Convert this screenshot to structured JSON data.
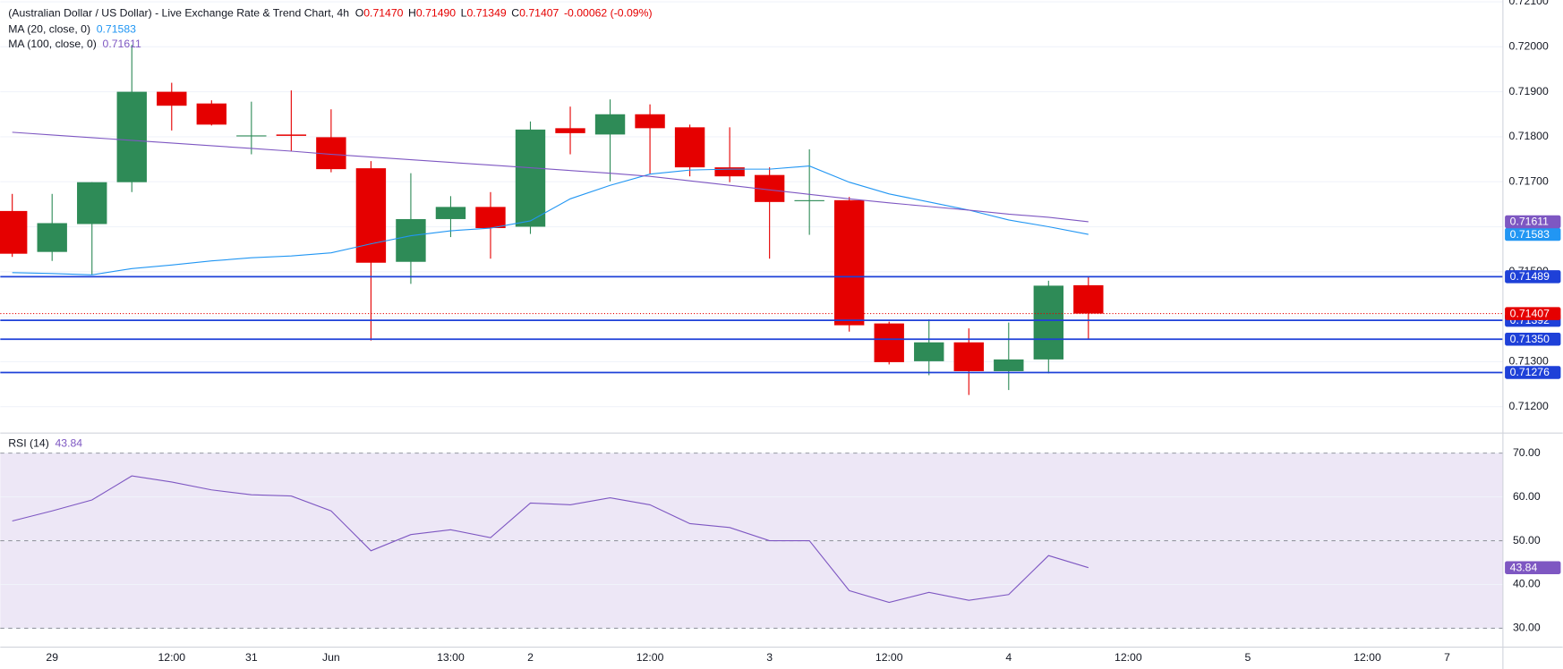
{
  "chart_data": [
    {
      "type": "candlestick",
      "title": "(Australian Dollar / US Dollar) - Live Exchange Rate & Trend Chart, 4h",
      "header_ohlc": [
        {
          "label": "O",
          "value": "0.71470"
        },
        {
          "label": "H",
          "value": "0.71490"
        },
        {
          "label": "L",
          "value": "0.71349"
        },
        {
          "label": "C",
          "value": "0.71407"
        }
      ],
      "header_change": "-0.00062 (-0.09%)",
      "x": [
        0,
        1,
        2,
        3,
        4,
        5,
        6,
        7,
        8,
        9,
        10,
        11,
        12,
        13,
        14,
        15,
        16,
        17,
        18,
        19,
        20,
        21,
        22,
        23,
        24,
        25,
        26,
        27
      ],
      "open": [
        0.71635,
        0.71544,
        0.71606,
        0.71699,
        0.719,
        0.71874,
        0.71803,
        0.71805,
        0.71799,
        0.7173,
        0.71522,
        0.71617,
        0.71644,
        0.716,
        0.71819,
        0.71805,
        0.7185,
        0.71821,
        0.71732,
        0.71715,
        0.71659,
        0.71659,
        0.71385,
        0.71301,
        0.71343,
        0.71279,
        0.71305,
        0.7147
      ],
      "high": [
        0.71673,
        0.71673,
        0.71699,
        0.72004,
        0.7192,
        0.71881,
        0.71878,
        0.71903,
        0.71861,
        0.71746,
        0.71719,
        0.71668,
        0.71677,
        0.71834,
        0.71867,
        0.71883,
        0.71872,
        0.71827,
        0.71821,
        0.71732,
        0.71772,
        0.71666,
        0.71389,
        0.71394,
        0.71374,
        0.71387,
        0.7148,
        0.7149
      ],
      "low": [
        0.71533,
        0.71524,
        0.71493,
        0.71677,
        0.71814,
        0.71825,
        0.71761,
        0.71768,
        0.71721,
        0.71347,
        0.71473,
        0.71577,
        0.71529,
        0.71584,
        0.71761,
        0.71701,
        0.71717,
        0.71712,
        0.71699,
        0.71529,
        0.71582,
        0.71367,
        0.71294,
        0.7127,
        0.71226,
        0.71237,
        0.71274,
        0.71349
      ],
      "close": [
        0.7154,
        0.71608,
        0.71699,
        0.719,
        0.71869,
        0.71827,
        0.71803,
        0.71802,
        0.71728,
        0.7152,
        0.71617,
        0.71644,
        0.71597,
        0.71816,
        0.71808,
        0.7185,
        0.71819,
        0.71732,
        0.71712,
        0.71655,
        0.71659,
        0.71381,
        0.71299,
        0.71343,
        0.71279,
        0.71305,
        0.71469,
        0.71407
      ],
      "up_color": "#2e8b57",
      "down_color": "#e50000",
      "overlays": [
        {
          "name": "MA (20, close, 0)",
          "color": "#2196f3",
          "values": [
            0.71498,
            0.71496,
            0.71493,
            0.71507,
            0.71515,
            0.71524,
            0.71531,
            0.71535,
            0.71542,
            0.71562,
            0.7158,
            0.71591,
            0.71597,
            0.71613,
            0.71662,
            0.71692,
            0.71717,
            0.71726,
            0.71728,
            0.71728,
            0.71735,
            0.71699,
            0.71673,
            0.71655,
            0.71637,
            0.71615,
            0.716,
            0.71583
          ]
        },
        {
          "name": "MA (100, close, 0)",
          "color": "#7e57c2",
          "values": [
            0.7181,
            0.71804,
            0.71798,
            0.71792,
            0.71786,
            0.7178,
            0.71774,
            0.71768,
            0.71761,
            0.71755,
            0.71749,
            0.71743,
            0.71737,
            0.71731,
            0.71725,
            0.71719,
            0.71712,
            0.71702,
            0.71692,
            0.71682,
            0.71672,
            0.71662,
            0.71653,
            0.71645,
            0.71637,
            0.71628,
            0.71621,
            0.71611
          ]
        }
      ],
      "levels": [
        {
          "value": 0.71489,
          "label": "0.71489"
        },
        {
          "value": 0.71392,
          "label": "0.71392"
        },
        {
          "value": 0.7135,
          "label": "0.71350"
        },
        {
          "value": 0.71276,
          "label": "0.71276"
        }
      ],
      "level_color": "#1e40d8",
      "ylim": [
        0.71148,
        0.72104
      ],
      "yticks": [
        {
          "value": 0.712,
          "label": "0.71200"
        },
        {
          "value": 0.713,
          "label": "0.71300"
        },
        {
          "value": 0.714,
          "label": "0.71400"
        },
        {
          "value": 0.715,
          "label": "0.71500"
        },
        {
          "value": 0.716,
          "label": "0.71600"
        },
        {
          "value": 0.717,
          "label": "0.71700"
        },
        {
          "value": 0.718,
          "label": "0.71800"
        },
        {
          "value": 0.719,
          "label": "0.71900"
        },
        {
          "value": 0.72,
          "label": "0.72000"
        },
        {
          "value": 0.721,
          "label": "0.72100"
        }
      ],
      "xlim": [
        -0.3,
        37.4
      ],
      "xticks": [
        {
          "value": 1,
          "label": "29"
        },
        {
          "value": 4,
          "label": "12:00"
        },
        {
          "value": 6,
          "label": "31"
        },
        {
          "value": 8,
          "label": "Jun"
        },
        {
          "value": 11,
          "label": "13:00"
        },
        {
          "value": 13,
          "label": "2"
        },
        {
          "value": 16,
          "label": "12:00"
        },
        {
          "value": 19,
          "label": "3"
        },
        {
          "value": 22,
          "label": "12:00"
        },
        {
          "value": 25,
          "label": "4"
        },
        {
          "value": 28,
          "label": "12:00"
        },
        {
          "value": 31,
          "label": "5"
        },
        {
          "value": 34,
          "label": "12:00"
        },
        {
          "value": 36,
          "label": "7"
        }
      ],
      "grid": true
    },
    {
      "type": "line",
      "title": "RSI (14)",
      "series": [
        {
          "name": "RSI (14)",
          "color": "#7e57c2",
          "values": [
            54.5,
            56.8,
            59.3,
            64.8,
            63.4,
            61.6,
            60.5,
            60.2,
            56.8,
            47.7,
            51.4,
            52.5,
            50.7,
            58.6,
            58.2,
            59.8,
            58.2,
            53.9,
            53.0,
            50.0,
            50.0,
            38.6,
            35.9,
            38.2,
            36.4,
            37.7,
            46.6,
            43.84
          ]
        }
      ],
      "band": [
        30,
        70
      ],
      "band_color": "#ede7f6",
      "reference_lines": [
        30,
        50,
        70
      ],
      "ylim": [
        25.7,
        73.9
      ],
      "yticks": [
        {
          "value": 30,
          "label": "30.00"
        },
        {
          "value": 40,
          "label": "40.00"
        },
        {
          "value": 50,
          "label": "50.00"
        },
        {
          "value": 60,
          "label": "60.00"
        },
        {
          "value": 70,
          "label": "70.00"
        }
      ],
      "grid": true
    }
  ]
}
